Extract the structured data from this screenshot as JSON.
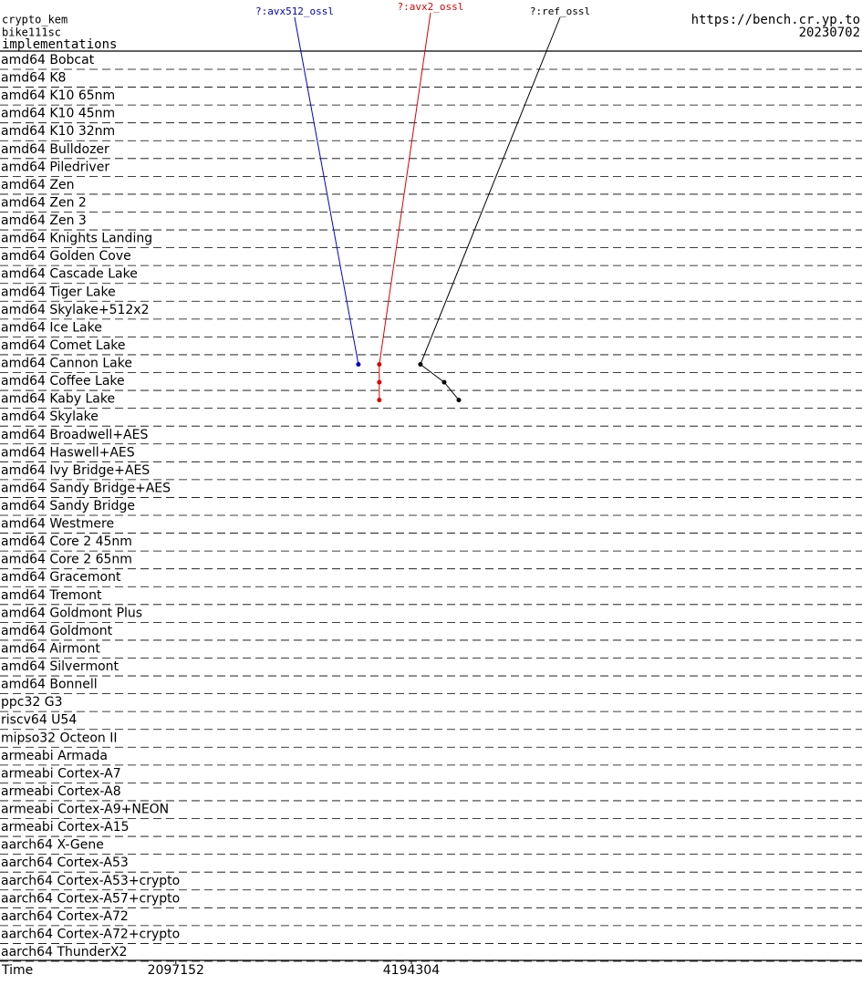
{
  "chart_data": {
    "type": "dot",
    "title": "crypto_kem",
    "subtitle": "bike111sc",
    "heading": "implementations",
    "source": "https://bench.cr.yp.to",
    "date": "20230702",
    "x_label": "Time",
    "x_log": true,
    "xlim": [
      1250000,
      15800000
    ],
    "xticks": [
      2097152,
      4194304
    ],
    "categories": [
      "amd64 Bobcat",
      "amd64 K8",
      "amd64 K10 65nm",
      "amd64 K10 45nm",
      "amd64 K10 32nm",
      "amd64 Bulldozer",
      "amd64 Piledriver",
      "amd64 Zen",
      "amd64 Zen 2",
      "amd64 Zen 3",
      "amd64 Knights Landing",
      "amd64 Golden Cove",
      "amd64 Cascade Lake",
      "amd64 Tiger Lake",
      "amd64 Skylake+512x2",
      "amd64 Ice Lake",
      "amd64 Comet Lake",
      "amd64 Cannon Lake",
      "amd64 Coffee Lake",
      "amd64 Kaby Lake",
      "amd64 Skylake",
      "amd64 Broadwell+AES",
      "amd64 Haswell+AES",
      "amd64 Ivy Bridge+AES",
      "amd64 Sandy Bridge+AES",
      "amd64 Sandy Bridge",
      "amd64 Westmere",
      "amd64 Core 2 45nm",
      "amd64 Core 2 65nm",
      "amd64 Gracemont",
      "amd64 Tremont",
      "amd64 Goldmont Plus",
      "amd64 Goldmont",
      "amd64 Airmont",
      "amd64 Silvermont",
      "amd64 Bonnell",
      "ppc32 G3",
      "riscv64 U54",
      "mipso32 Octeon II",
      "armeabi Armada",
      "armeabi Cortex-A7",
      "armeabi Cortex-A8",
      "armeabi Cortex-A9+NEON",
      "armeabi Cortex-A15",
      "aarch64 X-Gene",
      "aarch64 Cortex-A53",
      "aarch64 Cortex-A53+crypto",
      "aarch64 Cortex-A57+crypto",
      "aarch64 Cortex-A72",
      "aarch64 Cortex-A72+crypto",
      "aarch64 ThunderX2"
    ],
    "series": [
      {
        "name": "?:avx512_ossl",
        "color": "#0000cc",
        "values": [
          null,
          null,
          null,
          null,
          null,
          null,
          null,
          null,
          null,
          null,
          null,
          null,
          null,
          null,
          null,
          null,
          null,
          3589000,
          null,
          null,
          null,
          null,
          null,
          null,
          null,
          null,
          null,
          null,
          null,
          null,
          null,
          null,
          null,
          null,
          null,
          null,
          null,
          null,
          null,
          null,
          null,
          null,
          null,
          null,
          null,
          null,
          null,
          null,
          null,
          null,
          null
        ]
      },
      {
        "name": "?:avx2_ossl",
        "color": "#dd0000",
        "values": [
          null,
          null,
          null,
          null,
          null,
          null,
          null,
          null,
          null,
          null,
          null,
          null,
          null,
          null,
          null,
          null,
          null,
          3817000,
          3817000,
          3817000,
          null,
          null,
          null,
          null,
          null,
          null,
          null,
          null,
          null,
          null,
          null,
          null,
          null,
          null,
          null,
          null,
          null,
          null,
          null,
          null,
          null,
          null,
          null,
          null,
          null,
          null,
          null,
          null,
          null,
          null,
          null
        ]
      },
      {
        "name": "?:ref_ossl",
        "color": "#000000",
        "values": [
          null,
          null,
          null,
          null,
          null,
          null,
          null,
          null,
          null,
          null,
          null,
          null,
          null,
          null,
          null,
          null,
          null,
          4308000,
          4620000,
          4823000,
          null,
          null,
          null,
          null,
          null,
          null,
          null,
          null,
          null,
          null,
          null,
          null,
          null,
          null,
          null,
          null,
          null,
          null,
          null,
          null,
          null,
          null,
          null,
          null,
          null,
          null,
          null,
          null,
          null,
          null,
          null
        ]
      }
    ]
  }
}
